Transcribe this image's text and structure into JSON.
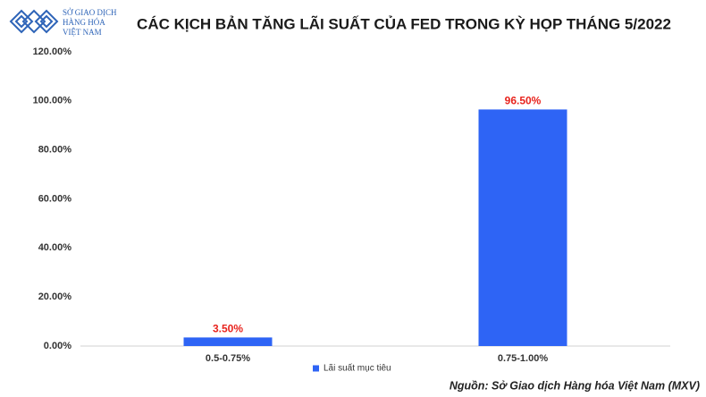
{
  "logo": {
    "lines": [
      "SỞ GIAO DỊCH",
      "HÀNG HÓA",
      "VIỆT NAM"
    ]
  },
  "chart_data": {
    "type": "bar",
    "title": "CÁC KỊCH BẢN TĂNG LÃI SUẤT CỦA FED TRONG KỲ HỌP THÁNG 5/2022",
    "categories": [
      "0.5-0.75%",
      "0.75-1.00%"
    ],
    "series": [
      {
        "name": "Lãi suất mục tiêu",
        "color": "#2e64f5",
        "values": [
          3.5,
          96.5
        ],
        "value_labels": [
          "3.50%",
          "96.50%"
        ],
        "label_color": "#e8231d"
      }
    ],
    "ylim": [
      0,
      120
    ],
    "yticks": [
      {
        "value": 0,
        "label": "0.00%"
      },
      {
        "value": 20,
        "label": "20.00%"
      },
      {
        "value": 40,
        "label": "40.00%"
      },
      {
        "value": 60,
        "label": "60.00%"
      },
      {
        "value": 80,
        "label": "80.00%"
      },
      {
        "value": 100,
        "label": "100.00%"
      },
      {
        "value": 120,
        "label": "120.00%"
      }
    ],
    "grid": false,
    "legend": "bottom",
    "source": "Nguồn: Sở Giao dịch Hàng hóa Việt Nam (MXV)"
  }
}
